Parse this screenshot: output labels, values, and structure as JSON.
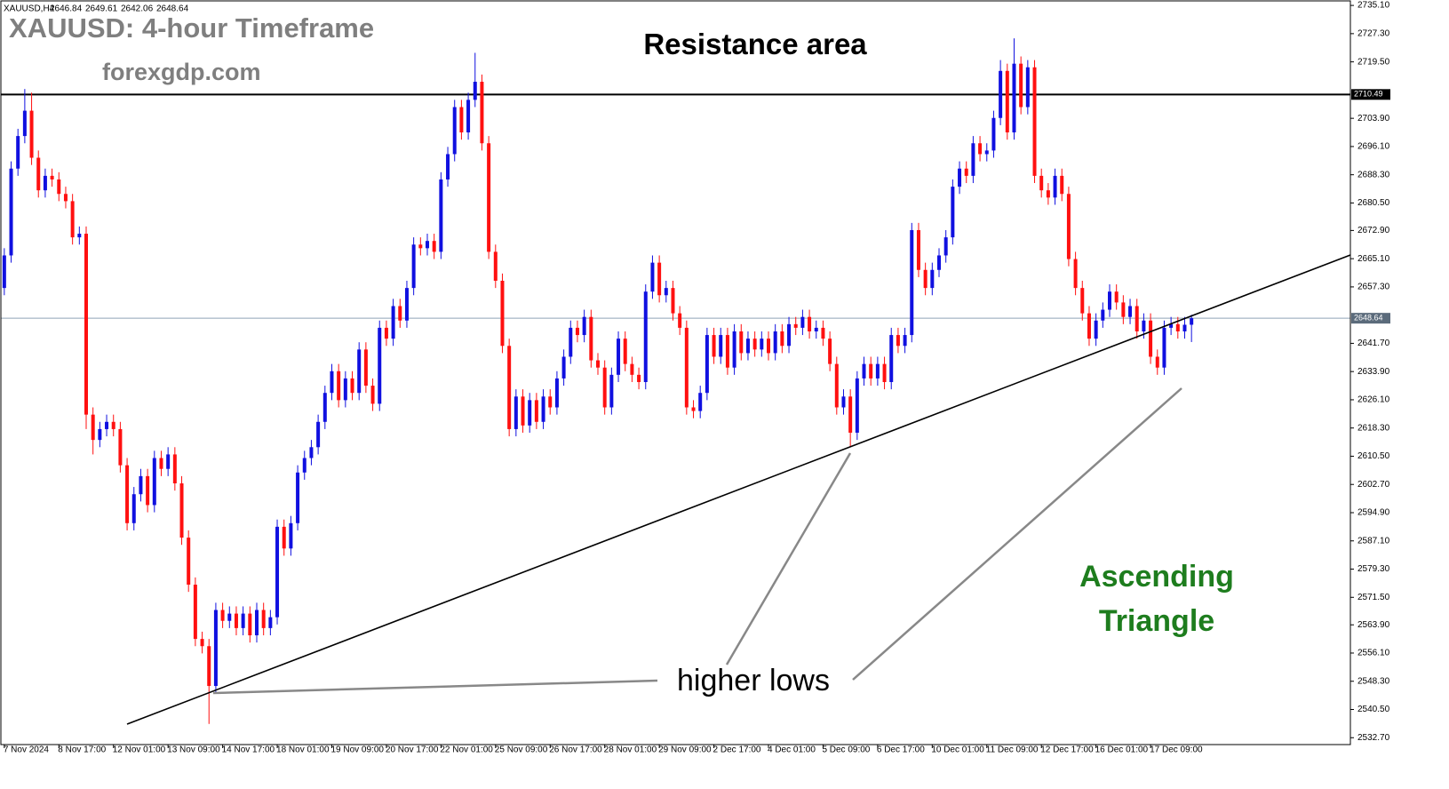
{
  "chart_data": {
    "type": "candlestick",
    "symbol": "XAUUSD,H4",
    "quote": [
      2646.84,
      2649.61,
      2642.06,
      2648.64
    ],
    "title": "XAUUSD: 4-hour Timeframe",
    "subtitle": "forexgdp.com",
    "annotations": {
      "resistance": "Resistance area",
      "pattern": [
        "Ascending",
        "Triangle"
      ],
      "lows": "higher lows"
    },
    "up_color": "#1010e0",
    "down_color": "#ff1010",
    "ylim": [
      2530.8,
      2736.6
    ],
    "yticks": [
      {
        "value": 2735.1,
        "label": "2735.10"
      },
      {
        "value": 2727.3,
        "label": "2727.30"
      },
      {
        "value": 2719.5,
        "label": "2719.50"
      },
      {
        "value": 2703.9,
        "label": "2703.90"
      },
      {
        "value": 2696.1,
        "label": "2696.10"
      },
      {
        "value": 2688.3,
        "label": "2688.30"
      },
      {
        "value": 2680.5,
        "label": "2680.50"
      },
      {
        "value": 2672.9,
        "label": "2672.90"
      },
      {
        "value": 2665.1,
        "label": "2665.10"
      },
      {
        "value": 2657.3,
        "label": "2657.30"
      },
      {
        "value": 2641.7,
        "label": "2641.70"
      },
      {
        "value": 2633.9,
        "label": "2633.90"
      },
      {
        "value": 2626.1,
        "label": "2626.10"
      },
      {
        "value": 2618.3,
        "label": "2618.30"
      },
      {
        "value": 2610.5,
        "label": "2610.50"
      },
      {
        "value": 2602.7,
        "label": "2602.70"
      },
      {
        "value": 2594.9,
        "label": "2594.90"
      },
      {
        "value": 2587.1,
        "label": "2587.10"
      },
      {
        "value": 2579.3,
        "label": "2579.30"
      },
      {
        "value": 2571.5,
        "label": "2571.50"
      },
      {
        "value": 2563.9,
        "label": "2563.90"
      },
      {
        "value": 2556.1,
        "label": "2556.10"
      },
      {
        "value": 2548.3,
        "label": "2548.30"
      },
      {
        "value": 2540.5,
        "label": "2540.50"
      },
      {
        "value": 2532.7,
        "label": "2532.70"
      }
    ],
    "price_lines": [
      {
        "value": 2710.49,
        "color": "#000000"
      },
      {
        "value": 2648.64,
        "color": "#8fa3b8"
      }
    ],
    "categories": [
      "7 Nov 2024",
      null,
      null,
      null,
      null,
      null,
      null,
      null,
      "8 Nov 17:00",
      null,
      null,
      null,
      null,
      null,
      null,
      null,
      "12 Nov 01:00",
      null,
      null,
      null,
      null,
      null,
      null,
      null,
      "13 Nov 09:00",
      null,
      null,
      null,
      null,
      null,
      null,
      null,
      "14 Nov 17:00",
      null,
      null,
      null,
      null,
      null,
      null,
      null,
      "18 Nov 01:00",
      null,
      null,
      null,
      null,
      null,
      null,
      null,
      "19 Nov 09:00",
      null,
      null,
      null,
      null,
      null,
      null,
      null,
      "20 Nov 17:00",
      null,
      null,
      null,
      null,
      null,
      null,
      null,
      "22 Nov 01:00",
      null,
      null,
      null,
      null,
      null,
      null,
      null,
      "25 Nov 09:00",
      null,
      null,
      null,
      null,
      null,
      null,
      null,
      "26 Nov 17:00",
      null,
      null,
      null,
      null,
      null,
      null,
      null,
      "28 Nov 01:00",
      null,
      null,
      null,
      null,
      null,
      null,
      null,
      "29 Nov 09:00",
      null,
      null,
      null,
      null,
      null,
      null,
      null,
      "2 Dec 17:00",
      null,
      null,
      null,
      null,
      null,
      null,
      null,
      "4 Dec 01:00",
      null,
      null,
      null,
      null,
      null,
      null,
      null,
      "5 Dec 09:00",
      null,
      null,
      null,
      null,
      null,
      null,
      null,
      "6 Dec 17:00",
      null,
      null,
      null,
      null,
      null,
      null,
      null,
      "10 Dec 01:00",
      null,
      null,
      null,
      null,
      null,
      null,
      null,
      "11 Dec 09:00",
      null,
      null,
      null,
      null,
      null,
      null,
      null,
      "12 Dec 17:00",
      null,
      null,
      null,
      null,
      null,
      null,
      null,
      "16 Dec 01:00",
      null,
      null,
      null,
      null,
      null,
      null,
      null,
      "17 Dec 09:00",
      null,
      null,
      null,
      null,
      null,
      null
    ],
    "open": [
      2657,
      2666,
      2690,
      2699,
      2706,
      2693,
      2684,
      2688,
      2687,
      2683,
      2681,
      2671,
      2672,
      2622,
      2615,
      2618,
      2620,
      2618,
      2608,
      2592,
      2600,
      2605,
      2597,
      2610,
      2607,
      2611,
      2603,
      2588,
      2575,
      2560,
      2558,
      2547,
      2568,
      2565,
      2567,
      2563,
      2567,
      2561,
      2568,
      2563,
      2566,
      2591,
      2585,
      2592,
      2606,
      2610,
      2613,
      2620,
      2628,
      2634,
      2626,
      2632,
      2628,
      2640,
      2630,
      2625,
      2646,
      2643,
      2652,
      2648,
      2657,
      2669,
      2668,
      2670,
      2667,
      2687,
      2694,
      2707,
      2700,
      2709,
      2714,
      2697,
      2667,
      2659,
      2641,
      2618,
      2627,
      2619,
      2626,
      2620,
      2627,
      2624,
      2632,
      2638,
      2646,
      2644,
      2649,
      2637,
      2635,
      2624,
      2633,
      2643,
      2636,
      2633,
      2631,
      2656,
      2664,
      2655,
      2657,
      2650,
      2646,
      2624,
      2623,
      2628,
      2644,
      2638,
      2644,
      2635,
      2645,
      2639,
      2643,
      2640,
      2643,
      2639,
      2645,
      2641,
      2647,
      2646,
      2649,
      2645,
      2646,
      2643,
      2636,
      2624,
      2627,
      2617,
      2632,
      2636,
      2632,
      2636,
      2631,
      2644,
      2641,
      2644,
      2673,
      2662,
      2657,
      2662,
      2666,
      2671,
      2685,
      2690,
      2688,
      2697,
      2694,
      2695,
      2704,
      2717,
      2700,
      2719,
      2707,
      2718,
      2688,
      2684,
      2682,
      2688,
      2683,
      2665,
      2657,
      2650,
      2643,
      2648,
      2651,
      2656,
      2653,
      2649,
      2652,
      2645,
      2648,
      2638,
      2635,
      2646,
      2647,
      2645,
      2646.84
    ],
    "high": [
      2668,
      2692,
      2701,
      2712,
      2711,
      2695,
      2690,
      2690,
      2689,
      2685,
      2683,
      2674,
      2674,
      2624,
      2620,
      2622,
      2622,
      2620,
      2610,
      2602,
      2607,
      2607,
      2612,
      2612,
      2613,
      2613,
      2605,
      2590,
      2577,
      2562,
      2560,
      2570,
      2570,
      2569,
      2569,
      2569,
      2569,
      2570,
      2570,
      2568,
      2593,
      2593,
      2594,
      2608,
      2612,
      2615,
      2622,
      2630,
      2636,
      2636,
      2634,
      2634,
      2642,
      2642,
      2632,
      2648,
      2648,
      2654,
      2654,
      2659,
      2671,
      2671,
      2672,
      2672,
      2689,
      2696,
      2709,
      2709,
      2711,
      2722,
      2716,
      2699,
      2669,
      2661,
      2643,
      2629,
      2629,
      2628,
      2628,
      2629,
      2629,
      2634,
      2640,
      2648,
      2648,
      2651,
      2651,
      2639,
      2637,
      2635,
      2645,
      2645,
      2638,
      2635,
      2658,
      2666,
      2666,
      2659,
      2659,
      2652,
      2648,
      2626,
      2630,
      2646,
      2646,
      2646,
      2646,
      2647,
      2647,
      2645,
      2645,
      2645,
      2645,
      2647,
      2647,
      2649,
      2649,
      2651,
      2651,
      2648,
      2648,
      2645,
      2638,
      2629,
      2629,
      2634,
      2638,
      2638,
      2638,
      2638,
      2646,
      2646,
      2646,
      2675,
      2675,
      2664,
      2664,
      2668,
      2673,
      2687,
      2692,
      2692,
      2699,
      2699,
      2697,
      2706,
      2720,
      2719,
      2726,
      2721,
      2720,
      2720,
      2690,
      2686,
      2690,
      2690,
      2685,
      2667,
      2659,
      2652,
      2650,
      2653,
      2658,
      2658,
      2655,
      2654,
      2654,
      2650,
      2650,
      2640,
      2648,
      2649,
      2649,
      2649,
      2649.61
    ],
    "low": [
      2655,
      2664,
      2688,
      2697,
      2691,
      2682,
      2682,
      2685,
      2681,
      2679,
      2669,
      2669,
      2618,
      2611,
      2613,
      2616,
      2616,
      2606,
      2590,
      2590,
      2598,
      2595,
      2595,
      2605,
      2605,
      2601,
      2586,
      2573,
      2558,
      2556,
      2536.5,
      2545,
      2563,
      2563,
      2561,
      2561,
      2559,
      2559,
      2561,
      2561,
      2564,
      2583,
      2583,
      2590,
      2604,
      2608,
      2611,
      2618,
      2626,
      2624,
      2624,
      2626,
      2626,
      2628,
      2623,
      2623,
      2641,
      2641,
      2646,
      2646,
      2655,
      2666,
      2666,
      2665,
      2665,
      2685,
      2692,
      2698,
      2698,
      2707,
      2695,
      2665,
      2657,
      2639,
      2616,
      2616,
      2617,
      2617,
      2618,
      2618,
      2622,
      2622,
      2630,
      2636,
      2642,
      2642,
      2635,
      2633,
      2622,
      2622,
      2631,
      2634,
      2631,
      2629,
      2629,
      2654,
      2653,
      2653,
      2648,
      2644,
      2622,
      2621,
      2621,
      2626,
      2636,
      2636,
      2633,
      2633,
      2637,
      2637,
      2638,
      2638,
      2637,
      2637,
      2639,
      2639,
      2644,
      2644,
      2643,
      2643,
      2641,
      2634,
      2622,
      2622,
      2613,
      2615,
      2630,
      2630,
      2630,
      2629,
      2629,
      2639,
      2639,
      2642,
      2660,
      2655,
      2655,
      2660,
      2664,
      2669,
      2683,
      2686,
      2686,
      2692,
      2692,
      2693,
      2702,
      2698,
      2698,
      2705,
      2705,
      2686,
      2682,
      2680,
      2680,
      2681,
      2663,
      2655,
      2648,
      2641,
      2641,
      2646,
      2649,
      2651,
      2647,
      2647,
      2643,
      2643,
      2636,
      2633,
      2633,
      2644,
      2643,
      2643,
      2642.06
    ],
    "close": [
      2666,
      2690,
      2699,
      2706,
      2693,
      2684,
      2688,
      2687,
      2683,
      2681,
      2671,
      2672,
      2622,
      2615,
      2618,
      2620,
      2618,
      2608,
      2592,
      2600,
      2605,
      2597,
      2610,
      2607,
      2611,
      2603,
      2588,
      2575,
      2560,
      2558,
      2547,
      2568,
      2565,
      2567,
      2563,
      2567,
      2561,
      2568,
      2563,
      2566,
      2591,
      2585,
      2592,
      2606,
      2610,
      2613,
      2620,
      2628,
      2634,
      2626,
      2632,
      2628,
      2640,
      2630,
      2625,
      2646,
      2643,
      2652,
      2648,
      2657,
      2669,
      2668,
      2670,
      2667,
      2687,
      2694,
      2707,
      2700,
      2709,
      2714,
      2697,
      2667,
      2659,
      2641,
      2618,
      2627,
      2619,
      2626,
      2620,
      2627,
      2624,
      2632,
      2638,
      2646,
      2644,
      2649,
      2637,
      2635,
      2624,
      2633,
      2643,
      2636,
      2633,
      2631,
      2656,
      2664,
      2655,
      2657,
      2650,
      2646,
      2624,
      2623,
      2628,
      2644,
      2638,
      2644,
      2635,
      2645,
      2639,
      2643,
      2640,
      2643,
      2639,
      2645,
      2641,
      2647,
      2646,
      2649,
      2645,
      2646,
      2643,
      2636,
      2624,
      2627,
      2617,
      2632,
      2636,
      2632,
      2636,
      2631,
      2644,
      2641,
      2644,
      2673,
      2662,
      2657,
      2662,
      2666,
      2671,
      2685,
      2690,
      2688,
      2697,
      2694,
      2695,
      2704,
      2717,
      2700,
      2719,
      2707,
      2718,
      2688,
      2684,
      2682,
      2688,
      2683,
      2665,
      2657,
      2650,
      2643,
      2648,
      2651,
      2656,
      2653,
      2649,
      2652,
      2645,
      2648,
      2638,
      2635,
      2646,
      2647,
      2645,
      2646.84,
      2648.64
    ]
  }
}
